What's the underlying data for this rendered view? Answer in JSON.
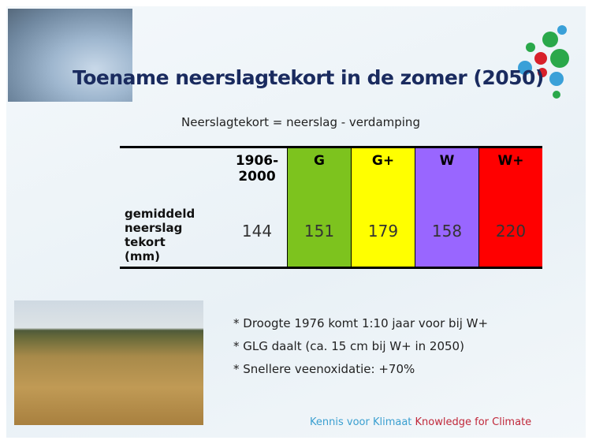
{
  "slide": {
    "title": "Toename neerslagtekort in de zomer (2050)",
    "formula": "Neerslagtekort  = neerslag - verdamping",
    "table": {
      "header": [
        [
          "1906-",
          "2000"
        ],
        [
          "G"
        ],
        [
          "G+"
        ],
        [
          "W"
        ],
        [
          "W+"
        ]
      ],
      "row_label": [
        "gemiddeld",
        "neerslag",
        "tekort",
        "(mm)"
      ],
      "values": [
        144,
        151,
        179,
        158,
        220
      ]
    },
    "bullets": [
      "* Droogte  1976 komt 1:10 jaar voor bij W+",
      "* GLG daalt (ca. 15 cm bij W+ in 2050)",
      "* Snellere veenoxidatie:  +70%"
    ],
    "footer": {
      "nl": "Kennis voor Klimaat",
      "en": "Knowledge for Climate"
    }
  }
}
